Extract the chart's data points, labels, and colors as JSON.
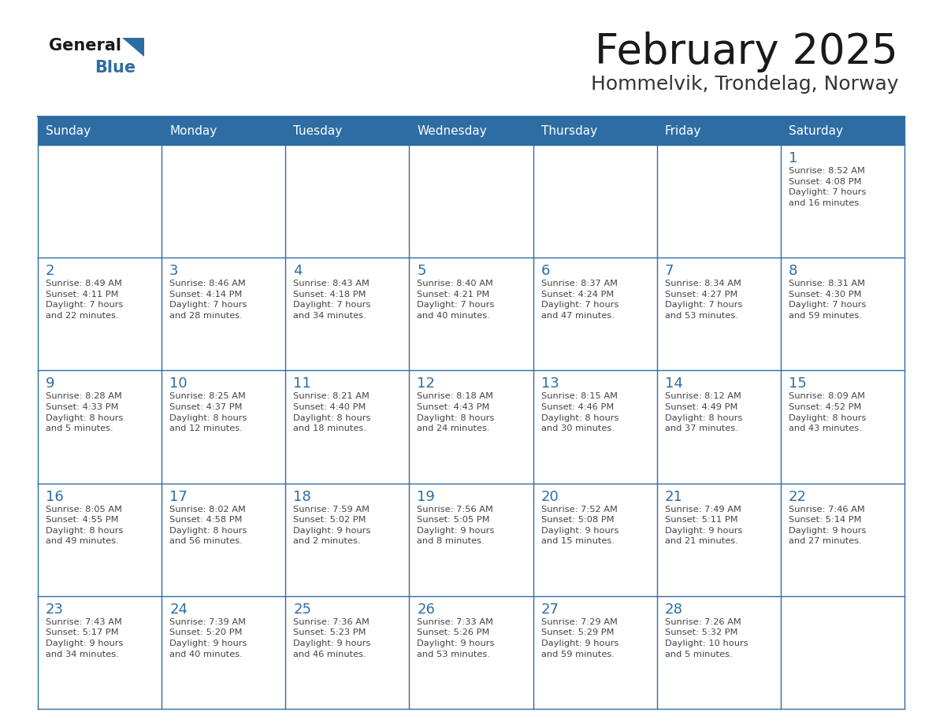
{
  "title": "February 2025",
  "subtitle": "Hommelvik, Trondelag, Norway",
  "header_bg": "#2E6DA4",
  "header_text": "#FFFFFF",
  "border_color": "#2E6DA4",
  "day_names": [
    "Sunday",
    "Monday",
    "Tuesday",
    "Wednesday",
    "Thursday",
    "Friday",
    "Saturday"
  ],
  "title_color": "#1a1a1a",
  "subtitle_color": "#333333",
  "day_number_color": "#2E6DA4",
  "cell_text_color": "#444444",
  "logo_general_color": "#1a1a1a",
  "logo_blue_color": "#2E6DA4",
  "calendar_data": [
    [
      null,
      null,
      null,
      null,
      null,
      null,
      {
        "day": "1",
        "sunrise": "8:52 AM",
        "sunset": "4:08 PM",
        "daylight": "7 hours\nand 16 minutes."
      }
    ],
    [
      {
        "day": "2",
        "sunrise": "8:49 AM",
        "sunset": "4:11 PM",
        "daylight": "7 hours\nand 22 minutes."
      },
      {
        "day": "3",
        "sunrise": "8:46 AM",
        "sunset": "4:14 PM",
        "daylight": "7 hours\nand 28 minutes."
      },
      {
        "day": "4",
        "sunrise": "8:43 AM",
        "sunset": "4:18 PM",
        "daylight": "7 hours\nand 34 minutes."
      },
      {
        "day": "5",
        "sunrise": "8:40 AM",
        "sunset": "4:21 PM",
        "daylight": "7 hours\nand 40 minutes."
      },
      {
        "day": "6",
        "sunrise": "8:37 AM",
        "sunset": "4:24 PM",
        "daylight": "7 hours\nand 47 minutes."
      },
      {
        "day": "7",
        "sunrise": "8:34 AM",
        "sunset": "4:27 PM",
        "daylight": "7 hours\nand 53 minutes."
      },
      {
        "day": "8",
        "sunrise": "8:31 AM",
        "sunset": "4:30 PM",
        "daylight": "7 hours\nand 59 minutes."
      }
    ],
    [
      {
        "day": "9",
        "sunrise": "8:28 AM",
        "sunset": "4:33 PM",
        "daylight": "8 hours\nand 5 minutes."
      },
      {
        "day": "10",
        "sunrise": "8:25 AM",
        "sunset": "4:37 PM",
        "daylight": "8 hours\nand 12 minutes."
      },
      {
        "day": "11",
        "sunrise": "8:21 AM",
        "sunset": "4:40 PM",
        "daylight": "8 hours\nand 18 minutes."
      },
      {
        "day": "12",
        "sunrise": "8:18 AM",
        "sunset": "4:43 PM",
        "daylight": "8 hours\nand 24 minutes."
      },
      {
        "day": "13",
        "sunrise": "8:15 AM",
        "sunset": "4:46 PM",
        "daylight": "8 hours\nand 30 minutes."
      },
      {
        "day": "14",
        "sunrise": "8:12 AM",
        "sunset": "4:49 PM",
        "daylight": "8 hours\nand 37 minutes."
      },
      {
        "day": "15",
        "sunrise": "8:09 AM",
        "sunset": "4:52 PM",
        "daylight": "8 hours\nand 43 minutes."
      }
    ],
    [
      {
        "day": "16",
        "sunrise": "8:05 AM",
        "sunset": "4:55 PM",
        "daylight": "8 hours\nand 49 minutes."
      },
      {
        "day": "17",
        "sunrise": "8:02 AM",
        "sunset": "4:58 PM",
        "daylight": "8 hours\nand 56 minutes."
      },
      {
        "day": "18",
        "sunrise": "7:59 AM",
        "sunset": "5:02 PM",
        "daylight": "9 hours\nand 2 minutes."
      },
      {
        "day": "19",
        "sunrise": "7:56 AM",
        "sunset": "5:05 PM",
        "daylight": "9 hours\nand 8 minutes."
      },
      {
        "day": "20",
        "sunrise": "7:52 AM",
        "sunset": "5:08 PM",
        "daylight": "9 hours\nand 15 minutes."
      },
      {
        "day": "21",
        "sunrise": "7:49 AM",
        "sunset": "5:11 PM",
        "daylight": "9 hours\nand 21 minutes."
      },
      {
        "day": "22",
        "sunrise": "7:46 AM",
        "sunset": "5:14 PM",
        "daylight": "9 hours\nand 27 minutes."
      }
    ],
    [
      {
        "day": "23",
        "sunrise": "7:43 AM",
        "sunset": "5:17 PM",
        "daylight": "9 hours\nand 34 minutes."
      },
      {
        "day": "24",
        "sunrise": "7:39 AM",
        "sunset": "5:20 PM",
        "daylight": "9 hours\nand 40 minutes."
      },
      {
        "day": "25",
        "sunrise": "7:36 AM",
        "sunset": "5:23 PM",
        "daylight": "9 hours\nand 46 minutes."
      },
      {
        "day": "26",
        "sunrise": "7:33 AM",
        "sunset": "5:26 PM",
        "daylight": "9 hours\nand 53 minutes."
      },
      {
        "day": "27",
        "sunrise": "7:29 AM",
        "sunset": "5:29 PM",
        "daylight": "9 hours\nand 59 minutes."
      },
      {
        "day": "28",
        "sunrise": "7:26 AM",
        "sunset": "5:32 PM",
        "daylight": "10 hours\nand 5 minutes."
      },
      null
    ]
  ]
}
